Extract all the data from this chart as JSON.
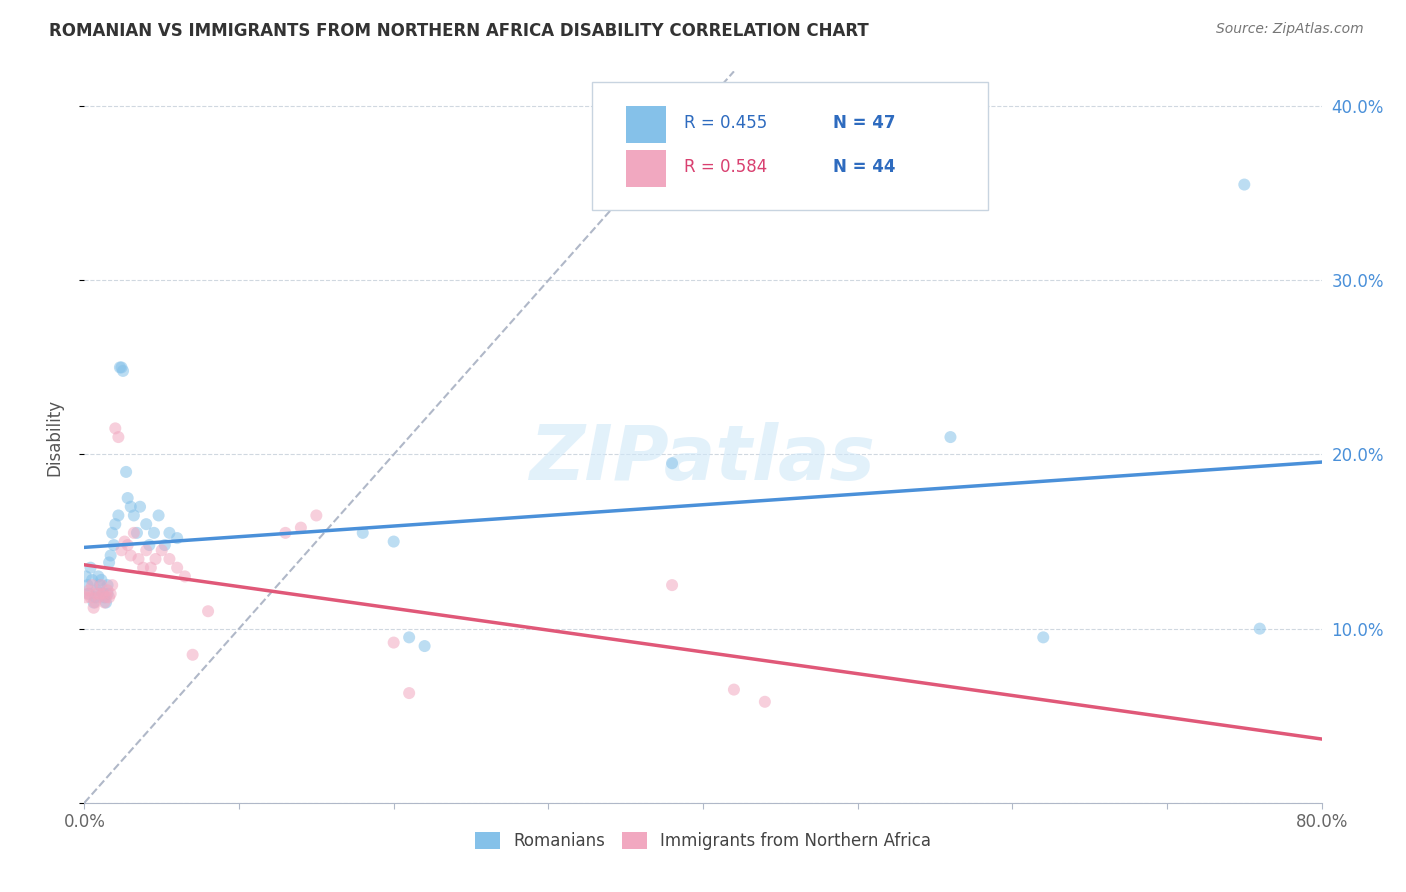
{
  "title": "ROMANIAN VS IMMIGRANTS FROM NORTHERN AFRICA DISABILITY CORRELATION CHART",
  "source": "Source: ZipAtlas.com",
  "ylabel": "Disability",
  "xlim": [
    0,
    0.8
  ],
  "ylim": [
    0,
    0.42
  ],
  "watermark": "ZIPatlas",
  "legend_labels": [
    "Romanians",
    "Immigrants from Northern Africa"
  ],
  "R_romanian": 0.455,
  "N_romanian": 47,
  "R_northern_africa": 0.584,
  "N_northern_africa": 44,
  "color_romanian": "#85c1e9",
  "color_northern_africa": "#f1a8c0",
  "color_line_romanian": "#4a90d9",
  "color_line_na": "#e05878",
  "color_text_blue": "#2e6bbf",
  "color_text_n": "#2e6bbf",
  "dot_alpha": 0.55,
  "dot_size": 75,
  "romanian_x": [
    0.001,
    0.002,
    0.003,
    0.004,
    0.005,
    0.006,
    0.007,
    0.008,
    0.009,
    0.01,
    0.011,
    0.012,
    0.013,
    0.014,
    0.015,
    0.015,
    0.016,
    0.017,
    0.018,
    0.019,
    0.02,
    0.022,
    0.023,
    0.024,
    0.025,
    0.027,
    0.028,
    0.03,
    0.032,
    0.034,
    0.036,
    0.04,
    0.042,
    0.045,
    0.048,
    0.052,
    0.055,
    0.06,
    0.18,
    0.2,
    0.21,
    0.22,
    0.38,
    0.56,
    0.62,
    0.75,
    0.76
  ],
  "romanian_y": [
    0.13,
    0.125,
    0.12,
    0.135,
    0.128,
    0.115,
    0.118,
    0.122,
    0.13,
    0.125,
    0.128,
    0.12,
    0.118,
    0.115,
    0.12,
    0.125,
    0.138,
    0.142,
    0.155,
    0.148,
    0.16,
    0.165,
    0.25,
    0.25,
    0.248,
    0.19,
    0.175,
    0.17,
    0.165,
    0.155,
    0.17,
    0.16,
    0.148,
    0.155,
    0.165,
    0.148,
    0.155,
    0.152,
    0.155,
    0.15,
    0.095,
    0.09,
    0.195,
    0.21,
    0.095,
    0.355,
    0.1
  ],
  "northern_africa_x": [
    0.001,
    0.002,
    0.003,
    0.004,
    0.005,
    0.006,
    0.007,
    0.008,
    0.009,
    0.01,
    0.011,
    0.012,
    0.013,
    0.014,
    0.015,
    0.016,
    0.017,
    0.018,
    0.02,
    0.022,
    0.024,
    0.026,
    0.028,
    0.03,
    0.032,
    0.035,
    0.038,
    0.04,
    0.043,
    0.046,
    0.05,
    0.055,
    0.06,
    0.065,
    0.07,
    0.08,
    0.13,
    0.14,
    0.15,
    0.2,
    0.21,
    0.38,
    0.42,
    0.44
  ],
  "northern_africa_y": [
    0.118,
    0.12,
    0.122,
    0.118,
    0.125,
    0.112,
    0.115,
    0.12,
    0.118,
    0.12,
    0.125,
    0.12,
    0.115,
    0.118,
    0.122,
    0.118,
    0.12,
    0.125,
    0.215,
    0.21,
    0.145,
    0.15,
    0.148,
    0.142,
    0.155,
    0.14,
    0.135,
    0.145,
    0.135,
    0.14,
    0.145,
    0.14,
    0.135,
    0.13,
    0.085,
    0.11,
    0.155,
    0.158,
    0.165,
    0.092,
    0.063,
    0.125,
    0.065,
    0.058
  ]
}
